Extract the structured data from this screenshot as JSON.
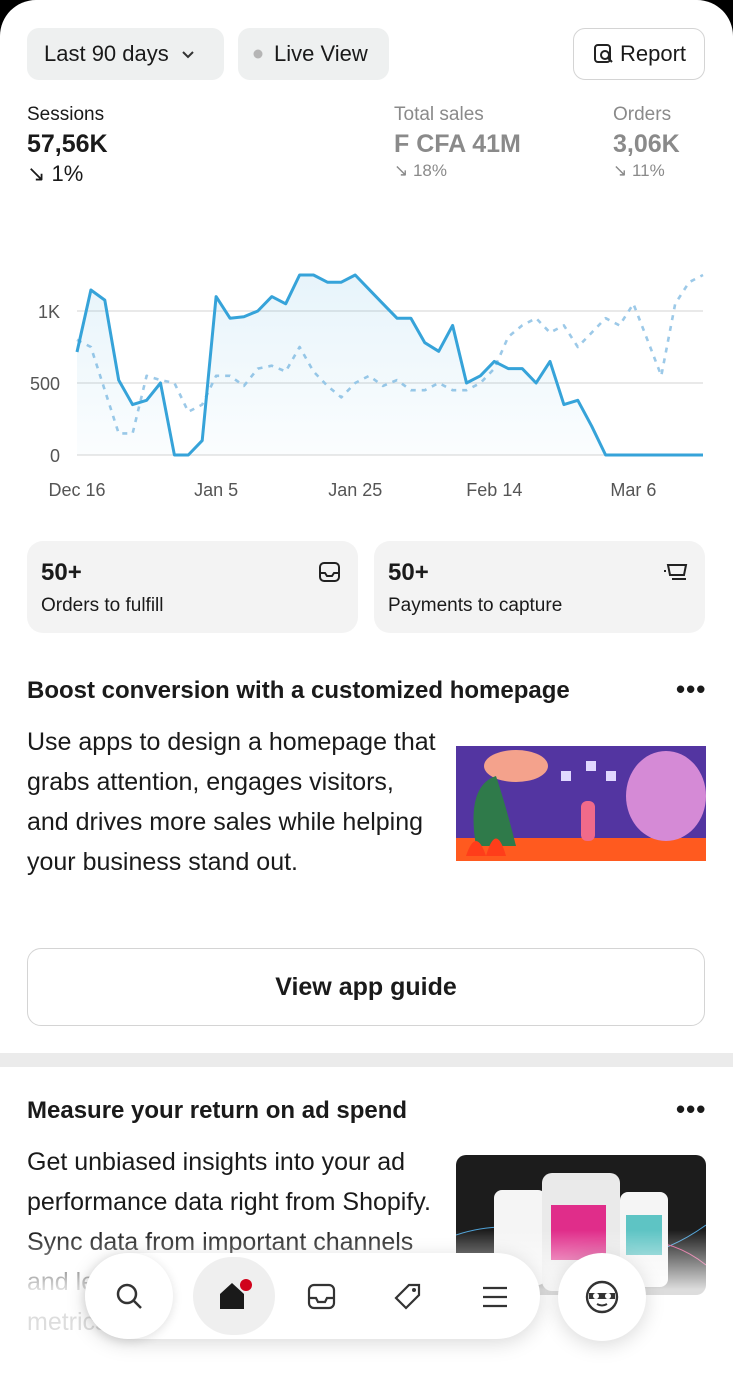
{
  "header": {
    "date_range": "Last 90 days",
    "live": "Live View",
    "report": "Report"
  },
  "metrics": [
    {
      "label": "Sessions",
      "value": "57,56K",
      "change": "1%"
    },
    {
      "label": "Total sales",
      "value": "F CFA 41M",
      "change": "18%"
    },
    {
      "label": "Orders",
      "value": "3,06K",
      "change": "11%"
    }
  ],
  "chart_data": {
    "type": "line",
    "categories": [
      "Dec 16",
      null,
      null,
      null,
      null,
      null,
      null,
      null,
      null,
      null,
      "Jan 5",
      null,
      null,
      null,
      null,
      null,
      null,
      null,
      null,
      null,
      "Jan 25",
      null,
      null,
      null,
      null,
      null,
      null,
      null,
      null,
      null,
      "Feb 14",
      null,
      null,
      null,
      null,
      null,
      null,
      null,
      null,
      null,
      "Mar 6",
      null,
      null,
      null,
      null,
      null
    ],
    "series": [
      {
        "color": "#36a3d9",
        "style": "solid",
        "values": [
          715,
          1146,
          1076,
          520,
          350,
          380,
          500,
          0,
          0,
          100,
          1100,
          950,
          960,
          1000,
          1100,
          1050,
          1250,
          1250,
          1200,
          1200,
          1250,
          1150,
          1050,
          950,
          950,
          780,
          720,
          900,
          500,
          550,
          650,
          600,
          600,
          500,
          650,
          350,
          380,
          200,
          0,
          0,
          0,
          0,
          0,
          0,
          0,
          0
        ]
      },
      {
        "color": "#9cc9e8",
        "style": "dotted",
        "values": [
          800,
          750,
          450,
          150,
          150,
          550,
          520,
          500,
          300,
          350,
          550,
          550,
          480,
          600,
          620,
          580,
          750,
          580,
          480,
          400,
          500,
          550,
          480,
          520,
          450,
          450,
          500,
          450,
          450,
          500,
          600,
          820,
          900,
          950,
          850,
          900,
          750,
          850,
          950,
          900,
          1050,
          800,
          550,
          1050,
          1200,
          1250
        ]
      }
    ],
    "ylim": [
      0,
      1400
    ],
    "yticks": [
      0,
      500,
      {
        "value": 1000,
        "label": "1K"
      }
    ],
    "grid": true
  },
  "tasks": [
    {
      "count": "50+",
      "label": "Orders to fulfill"
    },
    {
      "count": "50+",
      "label": "Payments to capture"
    }
  ],
  "cards": [
    {
      "title": "Boost conversion with a customized homepage",
      "body": "Use apps to design a homepage that grabs attention, engages visitors, and drives more sales while helping your business stand out.",
      "button": "View app guide"
    },
    {
      "title": "Measure your return on ad spend",
      "body": "Get unbiased insights into your ad performance data right from Shopify. Sync data from important channels and learn what works, compare metrics and decide how to improve"
    }
  ]
}
